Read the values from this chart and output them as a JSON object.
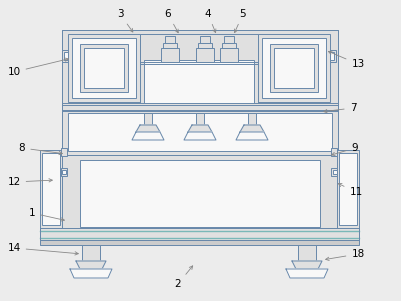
{
  "bg_color": "#ececec",
  "lc": "#6888aa",
  "gray": "#cccccc",
  "lgray": "#e0e0e0",
  "white": "#f8f8f8",
  "teal": "#7ab8b8",
  "arrow_color": "#888888",
  "label_data": {
    "1": [
      32,
      213,
      68,
      221
    ],
    "2": [
      178,
      284,
      195,
      263
    ],
    "3": [
      120,
      14,
      135,
      35
    ],
    "4": [
      208,
      14,
      217,
      36
    ],
    "5": [
      243,
      14,
      233,
      36
    ],
    "6": [
      168,
      14,
      180,
      36
    ],
    "7": [
      353,
      108,
      320,
      112
    ],
    "8": [
      22,
      148,
      66,
      154
    ],
    "9": [
      355,
      148,
      328,
      156
    ],
    "10": [
      14,
      72,
      72,
      58
    ],
    "11": [
      356,
      192,
      335,
      182
    ],
    "12": [
      14,
      182,
      56,
      180
    ],
    "13": [
      358,
      64,
      325,
      50
    ],
    "14": [
      14,
      248,
      82,
      254
    ],
    "18": [
      358,
      254,
      322,
      260
    ]
  }
}
